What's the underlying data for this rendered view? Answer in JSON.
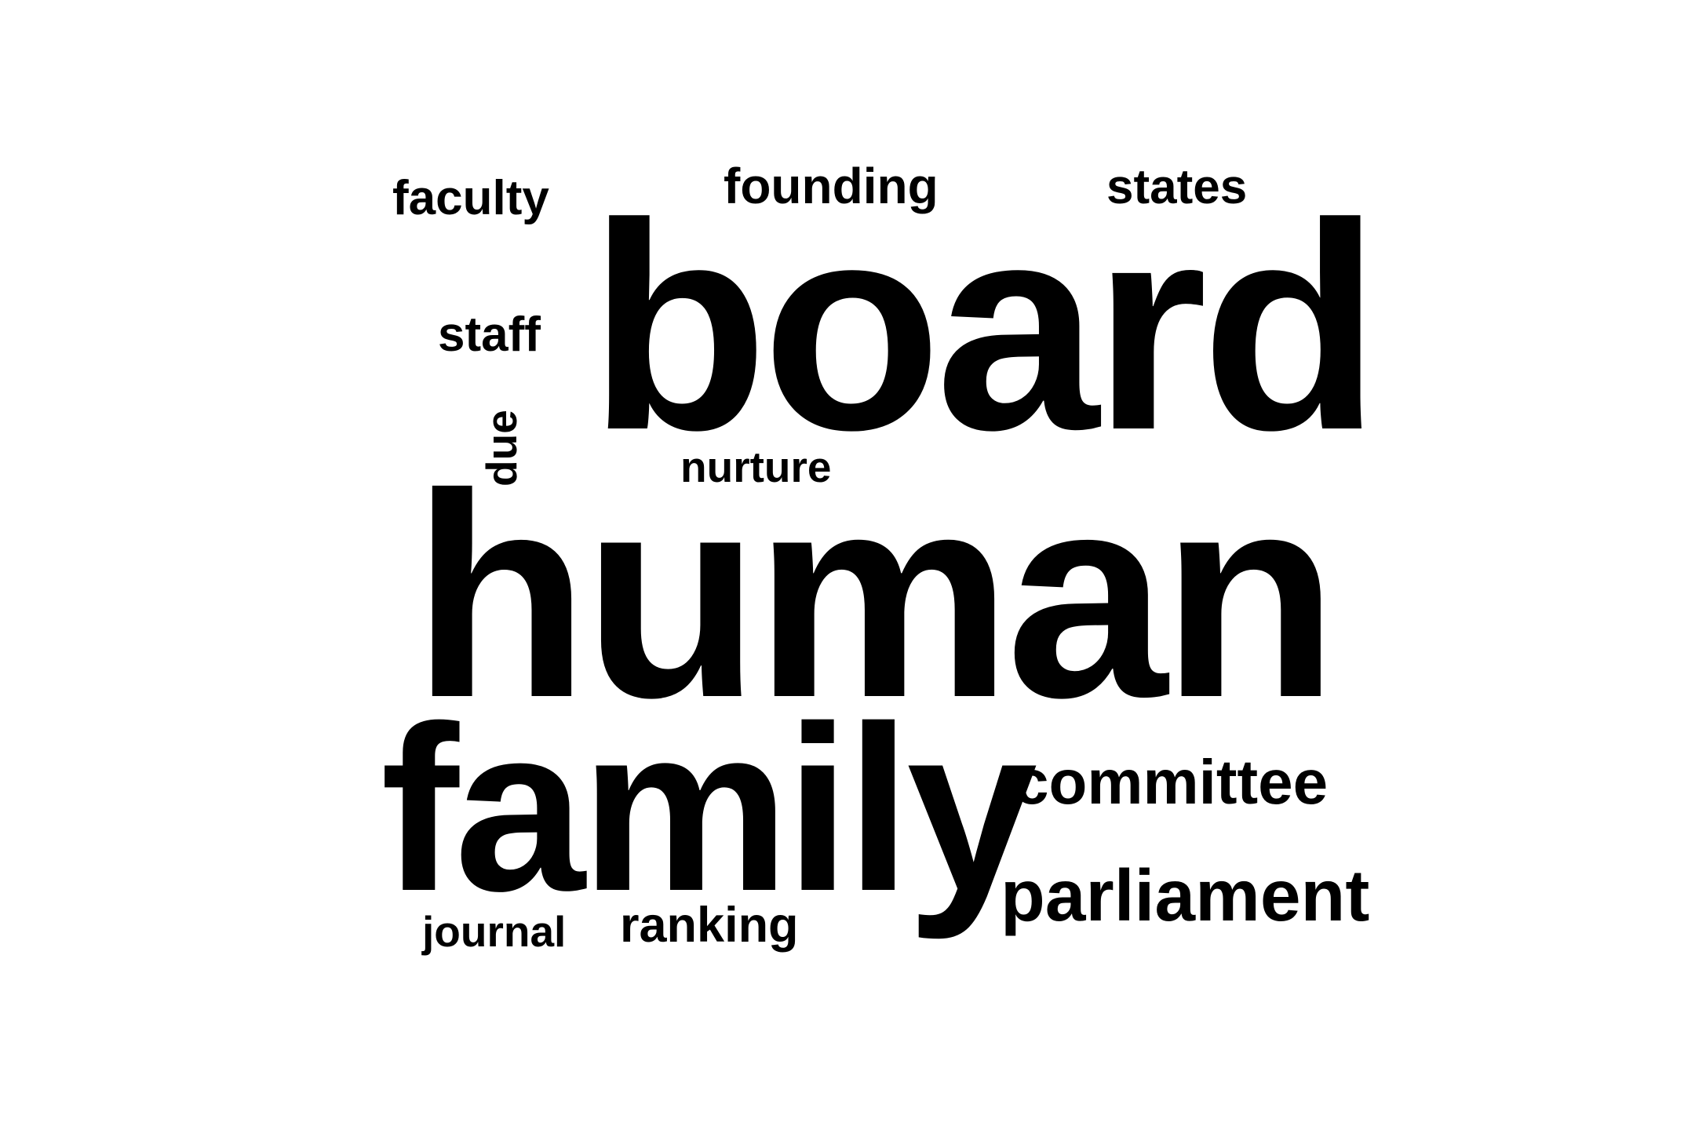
{
  "word_cloud": {
    "words": [
      {
        "text": "board"
      },
      {
        "text": "human"
      },
      {
        "text": "family"
      },
      {
        "text": "committee"
      },
      {
        "text": "parliament"
      },
      {
        "text": "faculty"
      },
      {
        "text": "founding"
      },
      {
        "text": "states"
      },
      {
        "text": "staff"
      },
      {
        "text": "due"
      },
      {
        "text": "nurture"
      },
      {
        "text": "journal"
      },
      {
        "text": "ranking"
      }
    ]
  }
}
